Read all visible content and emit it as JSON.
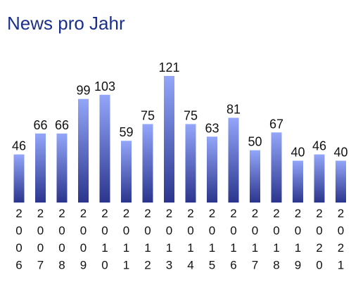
{
  "title": "News pro Jahr",
  "colors": {
    "title": "#1a2f8c",
    "bar_top": "#93a6fa",
    "bar_bottom": "#2b358d"
  },
  "chart_data": {
    "type": "bar",
    "title": "News pro Jahr",
    "xlabel": "",
    "ylabel": "",
    "categories": [
      "2006",
      "2007",
      "2008",
      "2009",
      "2010",
      "2011",
      "2012",
      "2013",
      "2014",
      "2015",
      "2016",
      "2017",
      "2018",
      "2019",
      "2020",
      "2021"
    ],
    "values": [
      46,
      66,
      66,
      99,
      103,
      59,
      75,
      121,
      75,
      63,
      81,
      50,
      67,
      40,
      46,
      40
    ],
    "ylim": [
      0,
      121
    ],
    "grid": false,
    "data_labels": true
  }
}
